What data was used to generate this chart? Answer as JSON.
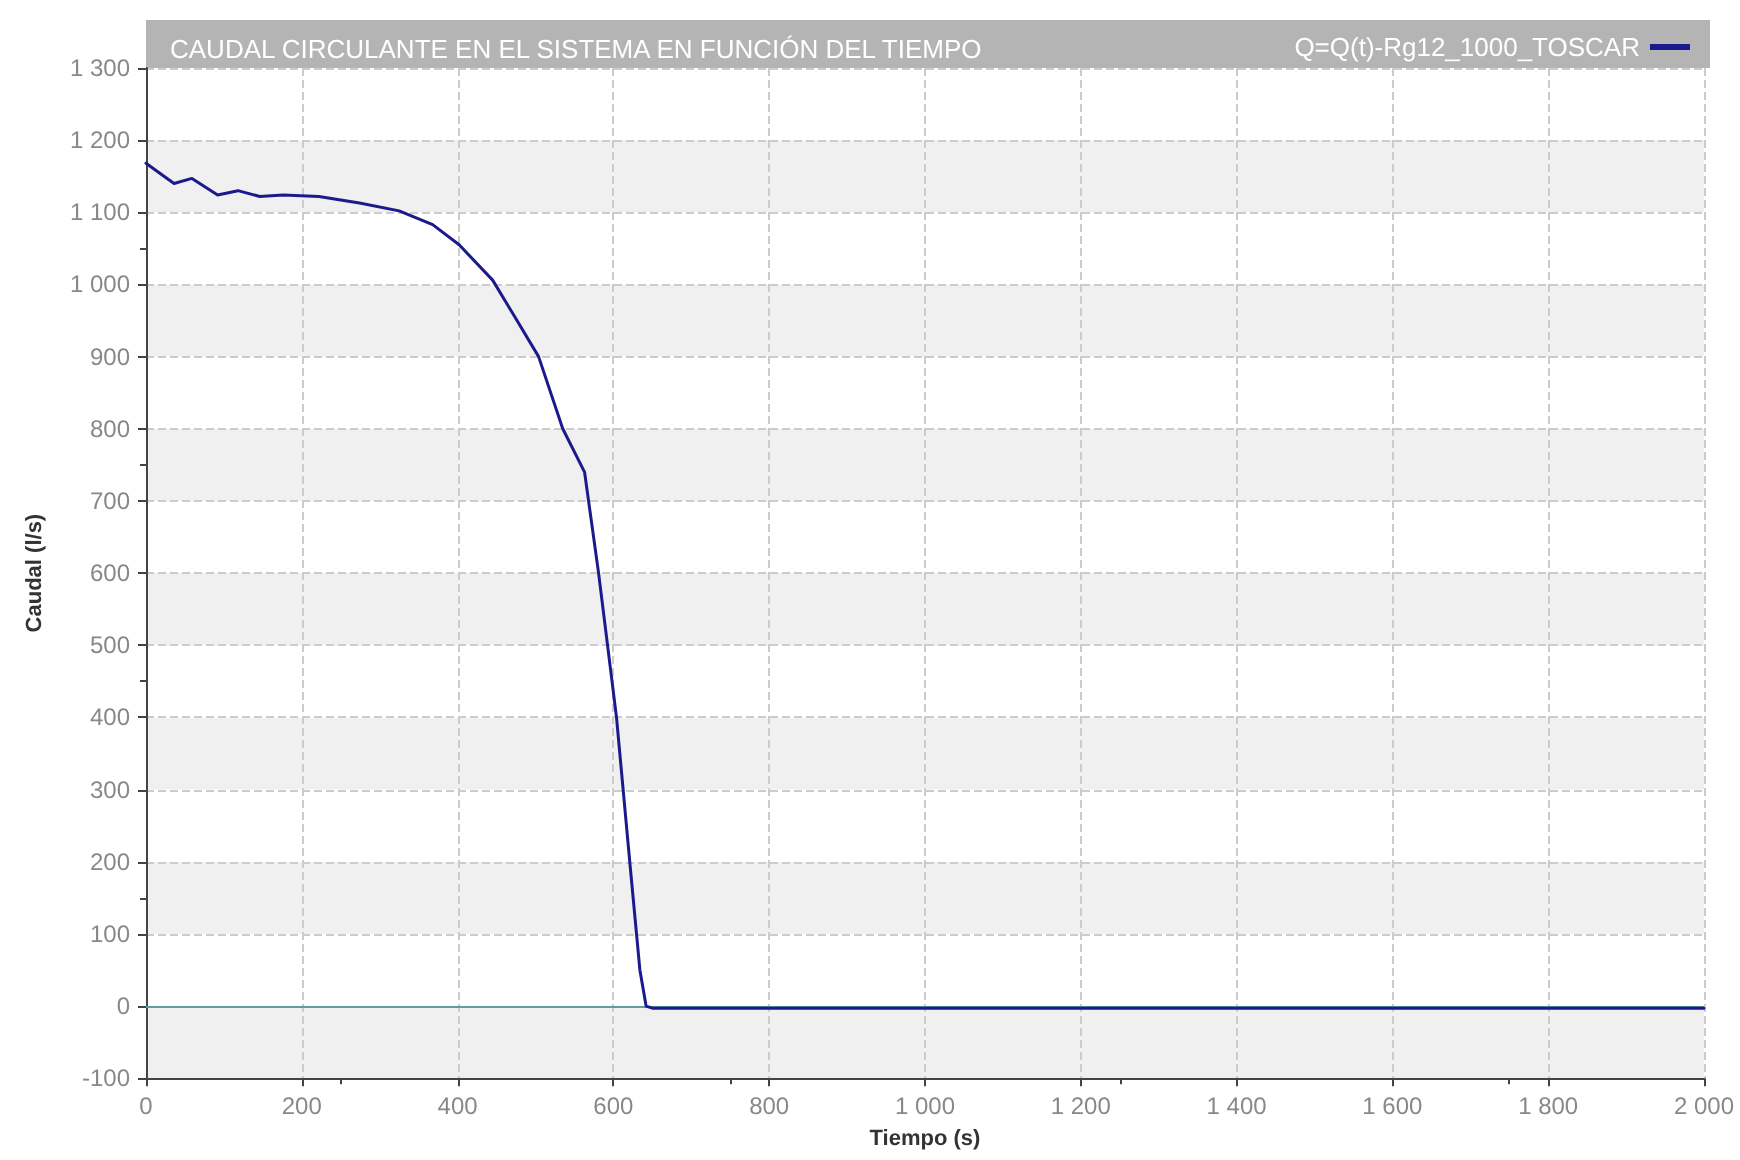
{
  "chart_data": {
    "type": "line",
    "title": "CAUDAL CIRCULANTE EN EL SISTEMA EN FUNCIÓN DEL TIEMPO",
    "xlabel": "Tiempo (s)",
    "ylabel": "Caudal (l/s)",
    "series": [
      {
        "name": "Q=Q(t)-Rg12_1000_TOSCAR",
        "color": "#1a1a8c",
        "x": [
          0,
          36,
          59,
          92,
          118,
          146,
          176,
          222,
          274,
          325,
          368,
          402,
          445,
          473,
          504,
          535,
          563,
          581,
          604,
          621,
          634,
          642,
          650,
          800,
          1000,
          1500,
          2000
        ],
        "values": [
          1168,
          1140,
          1147,
          1124,
          1130,
          1122,
          1124,
          1122,
          1113,
          1102,
          1083,
          1055,
          1006,
          956,
          900,
          800,
          740,
          600,
          400,
          200,
          50,
          0,
          -3,
          -3,
          -3,
          -3,
          -3
        ]
      }
    ],
    "xlim": [
      0,
      2000
    ],
    "xticks": [
      0,
      200,
      400,
      600,
      800,
      {
        "value": 1000,
        "label": "1 000"
      },
      {
        "value": 1200,
        "label": "1 200"
      },
      {
        "value": 1400,
        "label": "1 400"
      },
      {
        "value": 1600,
        "label": "1 600"
      },
      {
        "value": 1800,
        "label": "1 800"
      },
      {
        "value": 2000,
        "label": "2 000"
      }
    ],
    "ylim": [
      -100,
      1300
    ],
    "yticks": [
      -100,
      0,
      100,
      200,
      300,
      400,
      500,
      600,
      700,
      800,
      900,
      {
        "value": 1000,
        "label": "1 000"
      },
      {
        "value": 1100,
        "label": "1 100"
      },
      {
        "value": 1200,
        "label": "1 200"
      },
      {
        "value": 1300,
        "label": "1 300"
      }
    ],
    "ref_lines": [
      {
        "axis": "y",
        "value": 0,
        "color": "#5f9ea0"
      }
    ],
    "grid": true,
    "legend": "top right",
    "marker": "none",
    "line_style": "solid"
  }
}
